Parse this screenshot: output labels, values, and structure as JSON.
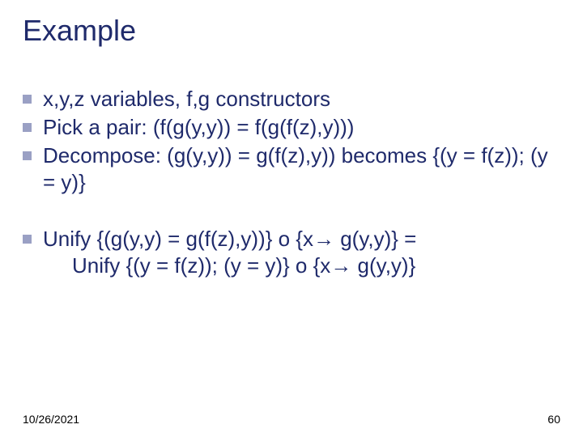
{
  "slide": {
    "title": "Example",
    "title_color": "#1f2a6b",
    "title_fontsize": 36,
    "body_color": "#1f2a6b",
    "body_fontsize": 26,
    "bullet_color": "#9aa0c4",
    "background_color": "#ffffff",
    "group1": {
      "b1": "x,y,z variables, f,g constructors",
      "b2": "Pick a pair: (f(g(y,y)) = f(g(f(z),y)))",
      "b3": "Decompose: (g(y,y)) = g(f(z),y)) becomes {(y = f(z)); (y = y)}"
    },
    "group2": {
      "b4_line1": "Unify {(g(y,y) = g(f(z),y))} o {x→ g(y,y)} =",
      "b4_line2": "Unify {(y = f(z)); (y = y)} o {x→ g(y,y)}"
    },
    "footer": {
      "date": "10/26/2021",
      "page": "60",
      "footer_fontsize": 14,
      "footer_color": "#000000"
    }
  }
}
